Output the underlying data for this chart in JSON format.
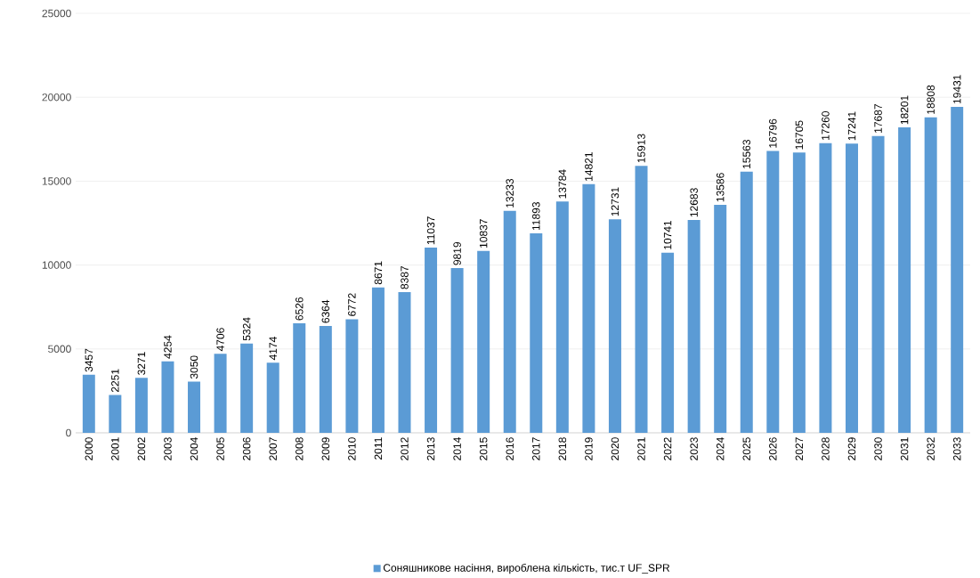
{
  "chart_data": {
    "type": "bar",
    "categories": [
      "2000",
      "2001",
      "2002",
      "2003",
      "2004",
      "2005",
      "2006",
      "2007",
      "2008",
      "2009",
      "2010",
      "2011",
      "2012",
      "2013",
      "2014",
      "2015",
      "2016",
      "2017",
      "2018",
      "2019",
      "2020",
      "2021",
      "2022",
      "2023",
      "2024",
      "2025",
      "2026",
      "2027",
      "2028",
      "2029",
      "2030",
      "2031",
      "2032",
      "2033"
    ],
    "series": [
      {
        "name": "Соняшникове насіння, вироблена кількість, тис.т UF_SPR",
        "color": "#5b9bd5",
        "values": [
          3457,
          2251,
          3271,
          4254,
          3050,
          4706,
          5324,
          4174,
          6526,
          6364,
          6772,
          8671,
          8387,
          11037,
          9819,
          10837,
          13233,
          11893,
          13784,
          14821,
          12731,
          15913,
          10741,
          12683,
          13586,
          15563,
          16796,
          16705,
          17260,
          17241,
          17687,
          18201,
          18808,
          19431
        ]
      }
    ],
    "ylim": [
      0,
      25000
    ],
    "yticks": [
      0,
      5000,
      10000,
      15000,
      20000,
      25000
    ],
    "grid": "y",
    "legend": "bottom",
    "data_labels": true
  }
}
